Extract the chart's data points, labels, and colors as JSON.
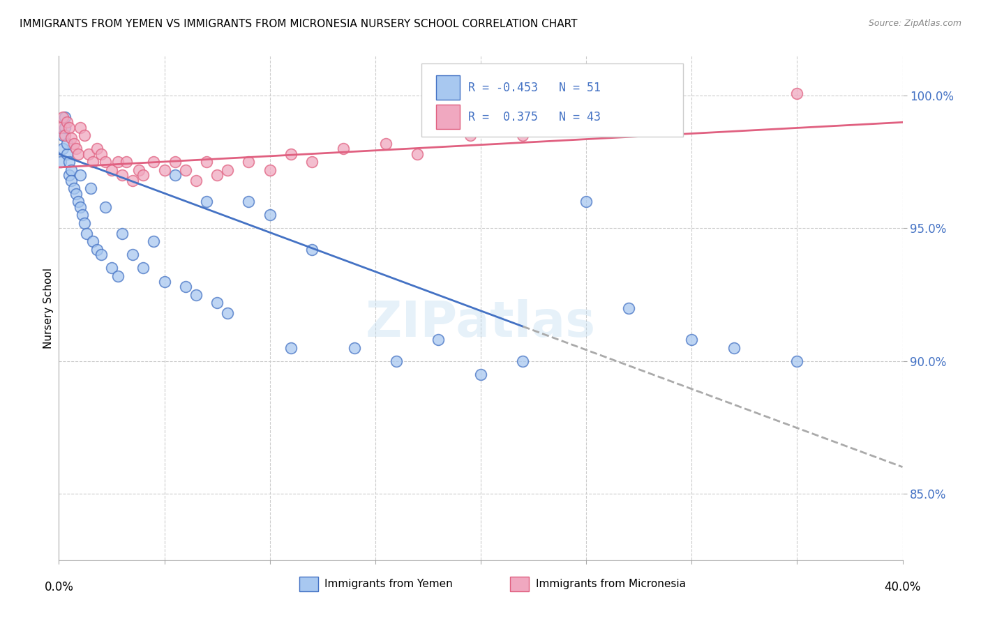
{
  "title": "IMMIGRANTS FROM YEMEN VS IMMIGRANTS FROM MICRONESIA NURSERY SCHOOL CORRELATION CHART",
  "source": "Source: ZipAtlas.com",
  "ylabel": "Nursery School",
  "xlim": [
    0.0,
    0.4
  ],
  "ylim": [
    0.825,
    1.015
  ],
  "yticks": [
    0.85,
    0.9,
    0.95,
    1.0
  ],
  "ytick_labels": [
    "85.0%",
    "90.0%",
    "95.0%",
    "100.0%"
  ],
  "xticks": [
    0.0,
    0.05,
    0.1,
    0.15,
    0.2,
    0.25,
    0.3,
    0.35,
    0.4
  ],
  "legend_R_yemen": "-0.453",
  "legend_N_yemen": "51",
  "legend_R_micro": " 0.375",
  "legend_N_micro": "43",
  "color_yemen_fill": "#a8c8f0",
  "color_yemen_edge": "#4472c4",
  "color_micro_fill": "#f0a8c0",
  "color_micro_edge": "#e06080",
  "color_line_yemen": "#4472c4",
  "color_line_micro": "#e06080",
  "color_dashed": "#aaaaaa",
  "color_text_blue": "#4472c4",
  "color_grid": "#cccccc",
  "watermark": "ZIPatlas",
  "yemen_x": [
    0.001,
    0.002,
    0.002,
    0.003,
    0.003,
    0.004,
    0.004,
    0.005,
    0.005,
    0.006,
    0.006,
    0.007,
    0.008,
    0.009,
    0.01,
    0.01,
    0.011,
    0.012,
    0.013,
    0.015,
    0.016,
    0.018,
    0.02,
    0.022,
    0.025,
    0.028,
    0.03,
    0.035,
    0.04,
    0.045,
    0.05,
    0.055,
    0.06,
    0.065,
    0.07,
    0.075,
    0.08,
    0.09,
    0.1,
    0.11,
    0.12,
    0.14,
    0.16,
    0.18,
    0.2,
    0.22,
    0.25,
    0.27,
    0.3,
    0.32,
    0.35
  ],
  "yemen_y": [
    0.975,
    0.98,
    0.985,
    0.988,
    0.992,
    0.978,
    0.982,
    0.97,
    0.975,
    0.972,
    0.968,
    0.965,
    0.963,
    0.96,
    0.958,
    0.97,
    0.955,
    0.952,
    0.948,
    0.965,
    0.945,
    0.942,
    0.94,
    0.958,
    0.935,
    0.932,
    0.948,
    0.94,
    0.935,
    0.945,
    0.93,
    0.97,
    0.928,
    0.925,
    0.96,
    0.922,
    0.918,
    0.96,
    0.955,
    0.905,
    0.942,
    0.905,
    0.9,
    0.908,
    0.895,
    0.9,
    0.96,
    0.92,
    0.908,
    0.905,
    0.9
  ],
  "micro_x": [
    0.001,
    0.002,
    0.003,
    0.004,
    0.005,
    0.006,
    0.007,
    0.008,
    0.009,
    0.01,
    0.012,
    0.014,
    0.016,
    0.018,
    0.02,
    0.022,
    0.025,
    0.028,
    0.03,
    0.032,
    0.035,
    0.038,
    0.04,
    0.045,
    0.05,
    0.055,
    0.06,
    0.065,
    0.07,
    0.075,
    0.08,
    0.09,
    0.1,
    0.11,
    0.12,
    0.135,
    0.155,
    0.17,
    0.195,
    0.22,
    0.25,
    0.29,
    0.35
  ],
  "micro_y": [
    0.988,
    0.992,
    0.985,
    0.99,
    0.988,
    0.984,
    0.982,
    0.98,
    0.978,
    0.988,
    0.985,
    0.978,
    0.975,
    0.98,
    0.978,
    0.975,
    0.972,
    0.975,
    0.97,
    0.975,
    0.968,
    0.972,
    0.97,
    0.975,
    0.972,
    0.975,
    0.972,
    0.968,
    0.975,
    0.97,
    0.972,
    0.975,
    0.972,
    0.978,
    0.975,
    0.98,
    0.982,
    0.978,
    0.985,
    0.985,
    0.988,
    0.99,
    1.001
  ],
  "line_yemen_x0": 0.0,
  "line_yemen_y0": 0.978,
  "line_yemen_x1": 0.22,
  "line_yemen_y1": 0.913,
  "line_yemen_dash_x0": 0.22,
  "line_yemen_dash_y0": 0.913,
  "line_yemen_dash_x1": 0.4,
  "line_yemen_dash_y1": 0.86,
  "line_micro_x0": 0.0,
  "line_micro_y0": 0.973,
  "line_micro_x1": 0.4,
  "line_micro_y1": 0.99
}
